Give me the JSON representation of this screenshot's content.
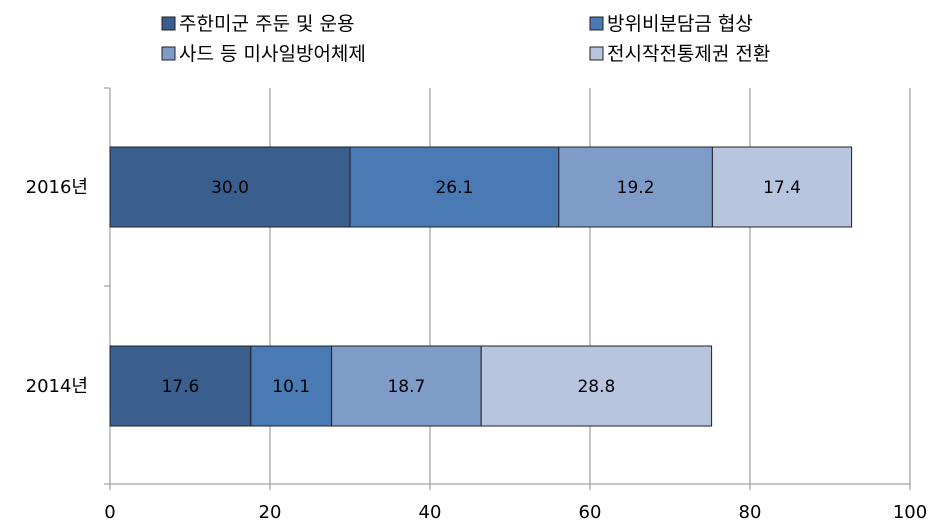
{
  "chart_data": {
    "type": "bar",
    "orientation": "horizontal",
    "stacked": true,
    "categories": [
      "2016년",
      "2014년"
    ],
    "series": [
      {
        "name": "주한미군 주둔 및 운용",
        "values": [
          30.0,
          17.6
        ],
        "color": "#3a5f8f"
      },
      {
        "name": "방위비분담금 협상",
        "values": [
          26.1,
          10.1
        ],
        "color": "#4a7ab3"
      },
      {
        "name": "사드 등 미사일방어체제",
        "values": [
          19.2,
          18.7
        ],
        "color": "#7f9cc9"
      },
      {
        "name": "전시작전통제권 전환",
        "values": [
          17.4,
          28.8
        ],
        "color": "#b8c5df"
      }
    ],
    "value_labels": [
      [
        "30.0",
        "17.6"
      ],
      [
        "26.1",
        "10.1"
      ],
      [
        "19.2",
        "18.7"
      ],
      [
        "17.4",
        "28.8"
      ]
    ],
    "xlim": [
      0,
      100
    ],
    "xticks": [
      "0",
      "20",
      "40",
      "60",
      "80",
      "100"
    ],
    "grid": true,
    "legend_position": "top"
  }
}
